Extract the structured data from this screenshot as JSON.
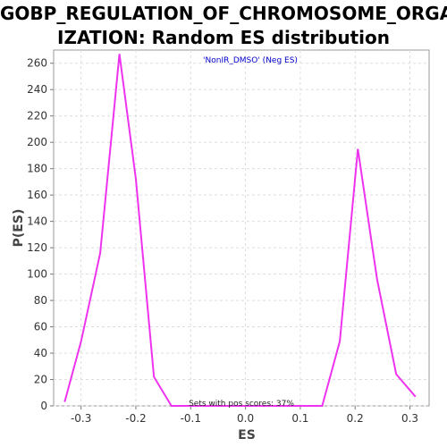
{
  "chart_data": {
    "type": "line",
    "title": "GOBP_REGULATION_OF_CHROMOSOME_ORGANIZATION: Random ES distribution",
    "title_lines": [
      "GOBP_REGULATION_OF_CHROMOSOME_ORGAN",
      "IZATION: Random ES distribution"
    ],
    "subtitle": "'NonIR_DMSO' (Neg ES)",
    "annotation": "Sets with pos scores: 37%",
    "xlabel": "ES",
    "ylabel": "P(ES)",
    "xlim": [
      -0.35,
      0.335
    ],
    "ylim": [
      0,
      270
    ],
    "xticks": [
      "-0.3",
      "-0.2",
      "-0.1",
      "0.0",
      "0.1",
      "0.2",
      "0.3"
    ],
    "xtick_values": [
      -0.3,
      -0.2,
      -0.1,
      0.0,
      0.1,
      0.2,
      0.3
    ],
    "yticks": [
      "0",
      "20",
      "40",
      "60",
      "80",
      "100",
      "120",
      "140",
      "160",
      "180",
      "200",
      "220",
      "240",
      "260"
    ],
    "ytick_values": [
      0,
      20,
      40,
      60,
      80,
      100,
      120,
      140,
      160,
      180,
      200,
      220,
      240,
      260
    ],
    "grid": true,
    "line_color": "#ee33ee",
    "series": [
      {
        "x": [
          -0.33,
          -0.3,
          -0.265,
          -0.23,
          -0.2,
          -0.167,
          -0.135,
          -0.1,
          -0.065,
          -0.03,
          0.0,
          0.035,
          0.07,
          0.105,
          0.14,
          0.172,
          0.205,
          0.24,
          0.275,
          0.31
        ],
        "y": [
          3,
          49,
          116,
          267,
          172,
          22,
          0,
          0,
          0,
          0,
          0,
          0,
          0,
          0,
          0,
          49,
          195,
          96,
          24,
          7
        ]
      }
    ]
  }
}
